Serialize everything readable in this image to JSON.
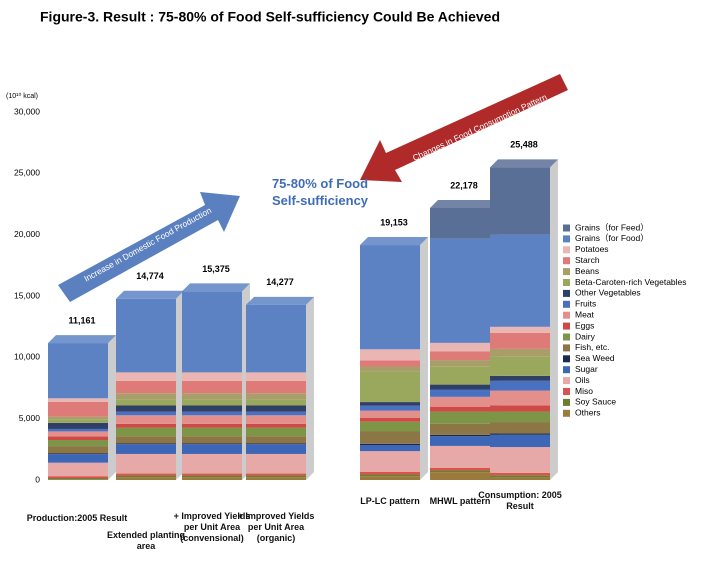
{
  "chart_data": {
    "type": "stacked_bar",
    "title": "Figure-3. Result : 75-80% of Food Self-sufficiency Could Be Achieved",
    "y_unit": "(10¹⁰ kcal)",
    "annotations": [
      "75-80% of Food Self-sufficiency",
      "Increase in Domestic Food Production",
      "Changes in Food Consumption Pattern"
    ],
    "categories": [
      "Production:2005 Result",
      "Extended planting area",
      "+ Improved Yields per Unit Area (convensional)",
      "+ Improved Yields per Unit Area (organic)",
      "LP-LC pattern",
      "MHWL pattern",
      "Consumption: 2005 Result"
    ],
    "totals": [
      11161,
      14774,
      15375,
      14277,
      19153,
      22178,
      25488
    ],
    "total_labels": [
      "11,161",
      "14,774",
      "15,375",
      "14,277",
      "19,153",
      "22,178",
      "25,488"
    ],
    "ylim": [
      0,
      30000
    ],
    "yticks": [
      0,
      {
        "value": 5000,
        "label": "5,000"
      },
      {
        "value": 10000,
        "label": "10,000"
      },
      {
        "value": 15000,
        "label": "15,000"
      },
      {
        "value": 20000,
        "label": "20,000"
      },
      {
        "value": 25000,
        "label": "25,000"
      },
      {
        "value": 30000,
        "label": "30,000"
      }
    ],
    "series": [
      {
        "name": "Grains（for Feed）",
        "color": "#5a6f96",
        "values": [
          0,
          0,
          0,
          0,
          0,
          2500,
          5500
        ]
      },
      {
        "name": "Grains（for Food）",
        "color": "#5d82c4",
        "values": [
          4500,
          6000,
          6601,
          5503,
          8500,
          8500,
          7500
        ]
      },
      {
        "name": "Potatoes",
        "color": "#e9b6b4",
        "values": [
          300,
          700,
          700,
          700,
          900,
          700,
          500
        ]
      },
      {
        "name": "Starch",
        "color": "#de7a78",
        "values": [
          1200,
          1000,
          1000,
          1000,
          500,
          700,
          1300
        ]
      },
      {
        "name": "Beans",
        "color": "#a99e6a",
        "values": [
          200,
          500,
          500,
          500,
          400,
          500,
          600
        ]
      },
      {
        "name": "Beta-Caroten-rich Vegetables",
        "color": "#9aa85e",
        "values": [
          300,
          500,
          500,
          500,
          2500,
          1500,
          1600
        ]
      },
      {
        "name": "Other Vegetables",
        "color": "#2f3f66",
        "values": [
          500,
          500,
          500,
          500,
          300,
          400,
          400
        ]
      },
      {
        "name": "Fruits",
        "color": "#4a70c0",
        "values": [
          200,
          300,
          300,
          300,
          400,
          600,
          800
        ]
      },
      {
        "name": "Meat",
        "color": "#e38f8c",
        "values": [
          400,
          700,
          700,
          700,
          600,
          800,
          1200
        ]
      },
      {
        "name": "Eggs",
        "color": "#cf4a47",
        "values": [
          300,
          300,
          300,
          300,
          300,
          400,
          500
        ]
      },
      {
        "name": "Dairy",
        "color": "#7e9446",
        "values": [
          500,
          700,
          700,
          700,
          800,
          1000,
          900
        ]
      },
      {
        "name": "Fish, etc.",
        "color": "#8c7646",
        "values": [
          600,
          600,
          600,
          600,
          1000,
          900,
          900
        ]
      },
      {
        "name": "Sea Weed",
        "color": "#1c2a52",
        "values": [
          50,
          50,
          50,
          50,
          100,
          100,
          100
        ]
      },
      {
        "name": "Sugar",
        "color": "#3e66b6",
        "values": [
          700,
          800,
          800,
          800,
          500,
          800,
          1000
        ]
      },
      {
        "name": "Oils",
        "color": "#e7a9a7",
        "values": [
          1100,
          1600,
          1600,
          1600,
          1700,
          1800,
          2100
        ]
      },
      {
        "name": "Miso",
        "color": "#d9534f",
        "values": [
          150,
          150,
          150,
          150,
          200,
          200,
          200
        ]
      },
      {
        "name": "Soy Sauce",
        "color": "#6f7c2e",
        "values": [
          100,
          150,
          150,
          150,
          150,
          150,
          200
        ]
      },
      {
        "name": "Others",
        "color": "#9b7a3e",
        "values": [
          61,
          224,
          224,
          224,
          303,
          628,
          188
        ]
      }
    ]
  }
}
